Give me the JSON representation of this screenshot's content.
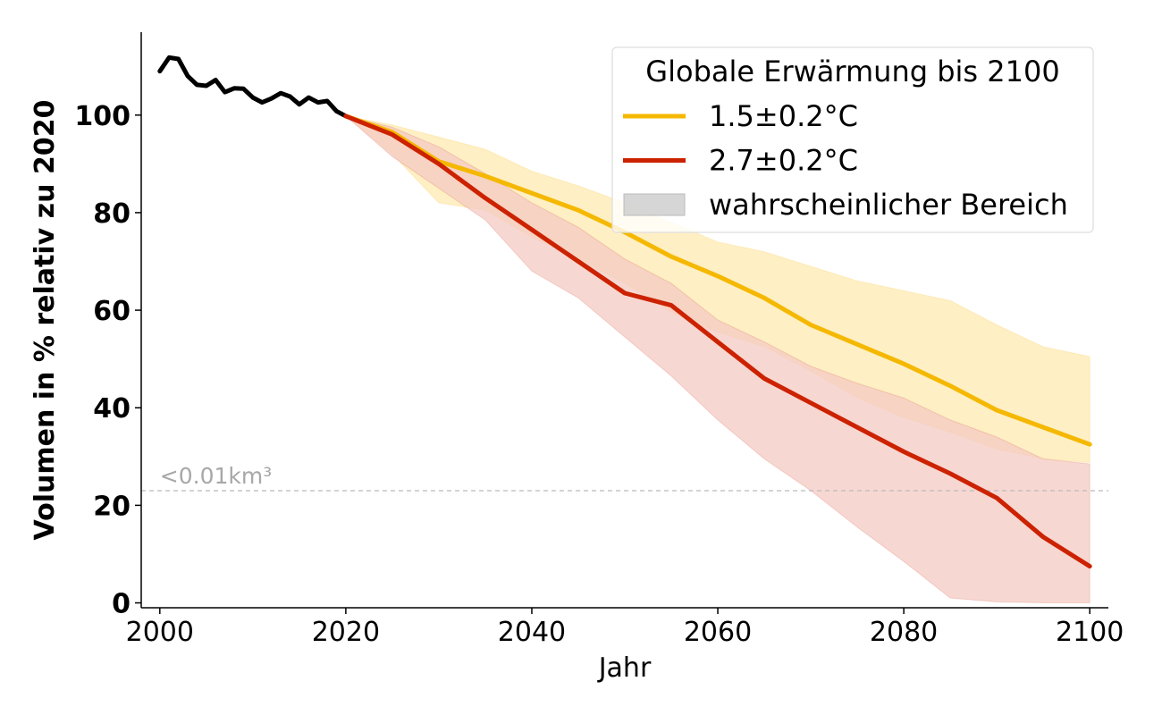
{
  "chart_data": {
    "type": "line",
    "xlabel": "Jahr",
    "ylabel": "Volumen in % relativ zu 2020",
    "xlim": [
      1998,
      2102
    ],
    "ylim": [
      -1,
      117
    ],
    "xticks": [
      2000,
      2020,
      2040,
      2060,
      2080,
      2100
    ],
    "yticks": [
      0,
      20,
      40,
      60,
      80,
      100
    ],
    "grid": false,
    "legend": {
      "title": "Globale Erwärmung bis 2100",
      "placement": "top-right",
      "entries": [
        {
          "label": "1.5±0.2°C",
          "kind": "line",
          "color": "#f5b800"
        },
        {
          "label": "2.7±0.2°C",
          "kind": "line",
          "color": "#cc2200"
        },
        {
          "label": "wahrscheinlicher Bereich",
          "kind": "patch",
          "color": "#cccccc"
        }
      ]
    },
    "threshold": {
      "y": 23,
      "label": "<0.01km³",
      "color": "#bbbbbb"
    },
    "historical": {
      "color": "#000000",
      "x": [
        2000,
        2001,
        2002,
        2003,
        2004,
        2005,
        2006,
        2007,
        2008,
        2009,
        2010,
        2011,
        2012,
        2013,
        2014,
        2015,
        2016,
        2017,
        2018,
        2019,
        2020
      ],
      "y": [
        109,
        111.8,
        111.5,
        108,
        106.2,
        106,
        107.2,
        104.7,
        105.5,
        105.4,
        103.6,
        102.6,
        103.4,
        104.5,
        103.8,
        102.2,
        103.6,
        102.6,
        102.9,
        100.8,
        99.8
      ]
    },
    "series": [
      {
        "name": "1.5±0.2°C",
        "color": "#f5b800",
        "band_color": "#fde9b0",
        "x": [
          2020,
          2025,
          2030,
          2035,
          2040,
          2045,
          2050,
          2055,
          2060,
          2065,
          2070,
          2075,
          2080,
          2085,
          2090,
          2095,
          2100
        ],
        "y": [
          99.8,
          96.5,
          90.5,
          87.5,
          84,
          80.5,
          76,
          71,
          67,
          62.5,
          57,
          53,
          49,
          44.5,
          39.5,
          36,
          32.5
        ],
        "lower": [
          99.8,
          92,
          82,
          80.5,
          75,
          70.5,
          65.5,
          59.5,
          55.5,
          52.5,
          47.5,
          42,
          38,
          35,
          31.5,
          29.5,
          28.8
        ],
        "upper": [
          99.8,
          98,
          95.5,
          93,
          88.5,
          85.5,
          82,
          78,
          74,
          72,
          69,
          66,
          64,
          62,
          57,
          52.5,
          50.5
        ]
      },
      {
        "name": "2.7±0.2°C",
        "color": "#cc2200",
        "band_color": "#f4c9c3",
        "x": [
          2020,
          2025,
          2030,
          2035,
          2040,
          2045,
          2050,
          2055,
          2060,
          2065,
          2070,
          2075,
          2080,
          2085,
          2090,
          2095,
          2100
        ],
        "y": [
          99.8,
          96,
          90,
          83,
          76.5,
          70,
          63.5,
          61,
          53.5,
          46,
          41,
          36,
          31,
          26.5,
          21.5,
          13.5,
          7.5
        ],
        "lower": [
          99.8,
          91.5,
          85,
          78.5,
          68,
          62.5,
          54.5,
          46.5,
          37.5,
          29.5,
          23,
          15.5,
          8.5,
          1,
          0.2,
          0,
          0
        ],
        "upper": [
          99.8,
          97.5,
          93.5,
          88,
          82,
          77,
          70.5,
          65.5,
          58,
          53.5,
          48.5,
          45,
          42,
          37.5,
          34,
          29.5,
          28.5
        ]
      }
    ]
  }
}
